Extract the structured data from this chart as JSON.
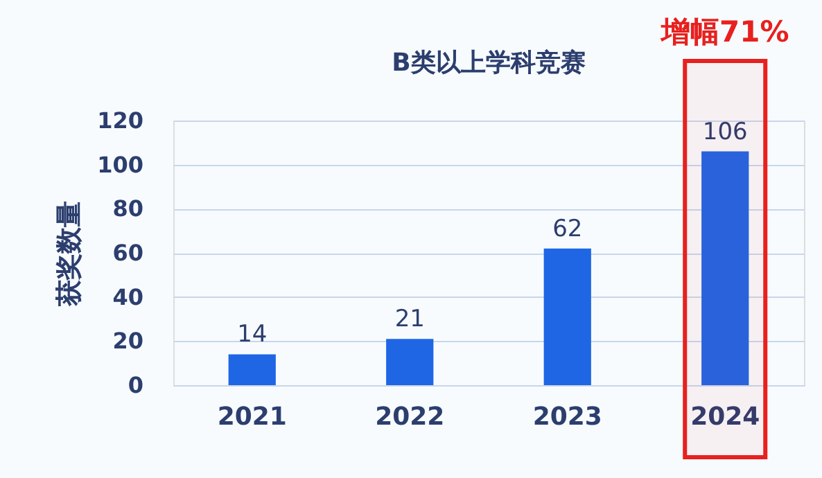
{
  "chart_data": {
    "type": "bar",
    "title": "B类以上学科竞赛",
    "ylabel": "获奖数量",
    "categories": [
      "2021",
      "2022",
      "2023",
      "2024"
    ],
    "values": [
      14,
      21,
      62,
      106
    ],
    "color": "#1f66e5",
    "ylim": [
      0,
      120
    ],
    "yticks": [
      0,
      20,
      40,
      60,
      80,
      100,
      120
    ],
    "grid": "y",
    "data_labels": true,
    "bands": [
      {
        "axis": "x",
        "from": "2024",
        "to": "2024",
        "label": "增幅71%",
        "color": "#e8201e"
      }
    ]
  }
}
